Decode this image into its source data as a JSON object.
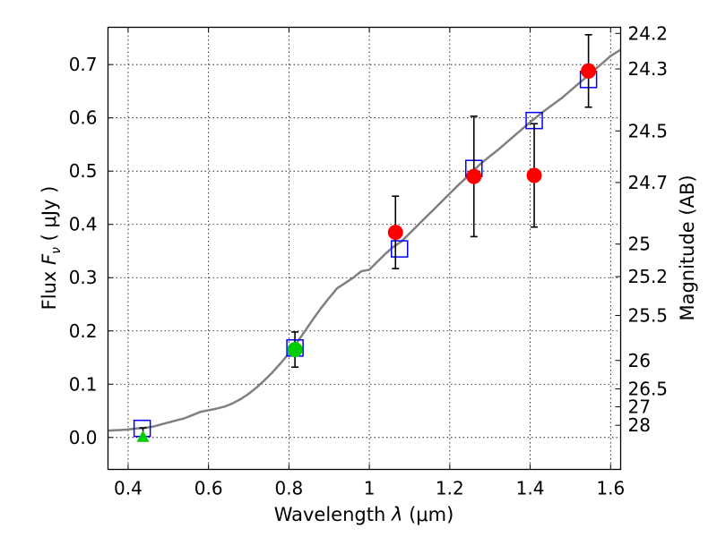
{
  "chart_data": {
    "type": "scatter",
    "xlabel_prefix": "Wavelength  ",
    "xlabel_symbol": "λ",
    "xlabel_unit": " (μm)",
    "ylabel_prefix": "Flux  ",
    "ylabel_symbol": "F",
    "ylabel_sub": "ν",
    "ylabel_unit": "  ( μJy )",
    "y2label": "Magnitude (AB)",
    "xlim": [
      0.35,
      1.625
    ],
    "ylim": [
      -0.06,
      0.77
    ],
    "grid": true,
    "xticks": [
      0.4,
      0.6,
      0.8,
      1.0,
      1.2,
      1.4,
      1.6
    ],
    "xtick_labels": [
      "0.4",
      "0.6",
      "0.8",
      "1",
      "1.2",
      "1.4",
      "1.6"
    ],
    "yticks": [
      0.0,
      0.1,
      0.2,
      0.3,
      0.4,
      0.5,
      0.6,
      0.7
    ],
    "ytick_labels": [
      "0.0",
      "0.1",
      "0.2",
      "0.3",
      "0.4",
      "0.5",
      "0.6",
      "0.7"
    ],
    "mag_ticks": [
      24.2,
      24.3,
      24.5,
      24.7,
      25,
      25.2,
      25.5,
      26,
      26.5,
      27,
      28
    ],
    "mag_tick_labels": [
      "24.2",
      "24.3",
      "24.5",
      "24.7",
      "25",
      "25.2",
      "25.5",
      "26",
      "26.5",
      "27",
      "28"
    ],
    "series": [
      {
        "type": "line",
        "color": "#808080",
        "points": [
          [
            0.35,
            0.013
          ],
          [
            0.38,
            0.014
          ],
          [
            0.4,
            0.015
          ],
          [
            0.42,
            0.017
          ],
          [
            0.44,
            0.018
          ],
          [
            0.46,
            0.02
          ],
          [
            0.48,
            0.024
          ],
          [
            0.5,
            0.028
          ],
          [
            0.52,
            0.032
          ],
          [
            0.54,
            0.036
          ],
          [
            0.56,
            0.042
          ],
          [
            0.58,
            0.048
          ],
          [
            0.6,
            0.051
          ],
          [
            0.62,
            0.054
          ],
          [
            0.64,
            0.058
          ],
          [
            0.66,
            0.064
          ],
          [
            0.68,
            0.072
          ],
          [
            0.7,
            0.082
          ],
          [
            0.72,
            0.094
          ],
          [
            0.74,
            0.108
          ],
          [
            0.76,
            0.123
          ],
          [
            0.78,
            0.14
          ],
          [
            0.8,
            0.158
          ],
          [
            0.82,
            0.178
          ],
          [
            0.84,
            0.2
          ],
          [
            0.86,
            0.222
          ],
          [
            0.88,
            0.243
          ],
          [
            0.9,
            0.262
          ],
          [
            0.92,
            0.28
          ],
          [
            0.94,
            0.29
          ],
          [
            0.96,
            0.3
          ],
          [
            0.98,
            0.312
          ],
          [
            1.0,
            0.315
          ],
          [
            1.02,
            0.33
          ],
          [
            1.04,
            0.345
          ],
          [
            1.06,
            0.358
          ],
          [
            1.08,
            0.368
          ],
          [
            1.1,
            0.383
          ],
          [
            1.12,
            0.398
          ],
          [
            1.14,
            0.413
          ],
          [
            1.16,
            0.428
          ],
          [
            1.18,
            0.443
          ],
          [
            1.2,
            0.458
          ],
          [
            1.22,
            0.473
          ],
          [
            1.24,
            0.487
          ],
          [
            1.26,
            0.502
          ],
          [
            1.28,
            0.516
          ],
          [
            1.3,
            0.528
          ],
          [
            1.32,
            0.54
          ],
          [
            1.34,
            0.553
          ],
          [
            1.36,
            0.566
          ],
          [
            1.38,
            0.579
          ],
          [
            1.4,
            0.592
          ],
          [
            1.42,
            0.604
          ],
          [
            1.44,
            0.616
          ],
          [
            1.46,
            0.627
          ],
          [
            1.48,
            0.638
          ],
          [
            1.5,
            0.651
          ],
          [
            1.52,
            0.664
          ],
          [
            1.54,
            0.677
          ],
          [
            1.56,
            0.69
          ],
          [
            1.58,
            0.703
          ],
          [
            1.6,
            0.716
          ],
          [
            1.625,
            0.728
          ]
        ]
      },
      {
        "type": "square",
        "color": "#0000ff",
        "points": [
          [
            0.435,
            0.017
          ],
          [
            0.815,
            0.168
          ],
          [
            1.075,
            0.354
          ],
          [
            1.26,
            0.505
          ],
          [
            1.41,
            0.595
          ],
          [
            1.545,
            0.672
          ]
        ]
      },
      {
        "type": "circle",
        "color": "#ff0000",
        "points": [
          [
            1.065,
            0.385,
            0.068
          ],
          [
            1.26,
            0.49,
            0.113
          ],
          [
            1.41,
            0.492,
            0.097
          ],
          [
            1.545,
            0.688,
            0.068
          ]
        ]
      },
      {
        "type": "circle",
        "color": "#00cc00",
        "points": [
          [
            0.815,
            0.165,
            0.033
          ]
        ]
      },
      {
        "type": "triangle",
        "color": "#00cc00",
        "points": [
          [
            0.437,
            0.0,
            0.018
          ]
        ]
      }
    ]
  }
}
